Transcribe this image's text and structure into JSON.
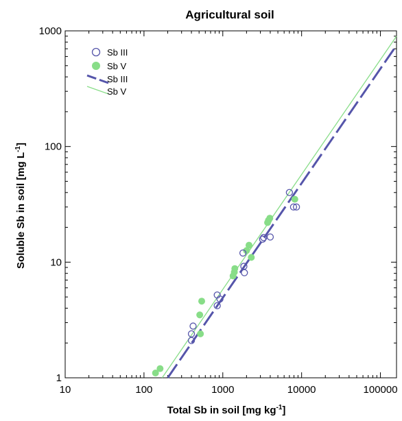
{
  "chart_data": {
    "type": "scatter",
    "title": "Agricultural soil",
    "xlabel": {
      "main": "Total Sb in soil [mg kg",
      "sup": "-1",
      "tail": "]"
    },
    "ylabel": {
      "main": "Soluble Sb in soil [mg L",
      "sup": "-1",
      "tail": "]"
    },
    "x_scale": "log",
    "y_scale": "log",
    "xlim": [
      10,
      160000
    ],
    "ylim": [
      1,
      1000
    ],
    "x_ticks": [
      10,
      100,
      1000,
      10000,
      100000
    ],
    "x_tick_labels": [
      "10",
      "100",
      "1000",
      "10000",
      "100000"
    ],
    "y_ticks": [
      1,
      10,
      100,
      1000
    ],
    "y_tick_labels": [
      "1",
      "10",
      "100",
      "1000"
    ],
    "grid": false,
    "legend_position": "top-left",
    "colors": {
      "sb3": "#5555aa",
      "sb5": "#88dd88"
    },
    "series": [
      {
        "name": "Sb III",
        "kind": "points",
        "marker": "open-circle",
        "color": "#5555aa",
        "points": [
          [
            400,
            2.1
          ],
          [
            400,
            2.4
          ],
          [
            420,
            2.8
          ],
          [
            850,
            4.2
          ],
          [
            850,
            5.2
          ],
          [
            920,
            4.8
          ],
          [
            1800,
            12
          ],
          [
            1850,
            9.2
          ],
          [
            1880,
            8.1
          ],
          [
            3200,
            15.8
          ],
          [
            3300,
            16.3
          ],
          [
            4000,
            16.5
          ],
          [
            7000,
            40
          ],
          [
            7900,
            30
          ],
          [
            8600,
            30
          ]
        ]
      },
      {
        "name": "Sb V",
        "kind": "points",
        "marker": "filled-circle",
        "color": "#88dd88",
        "points": [
          [
            140,
            1.1
          ],
          [
            160,
            1.2
          ],
          [
            520,
            2.4
          ],
          [
            510,
            3.5
          ],
          [
            540,
            4.6
          ],
          [
            1350,
            7.6
          ],
          [
            1400,
            8.2
          ],
          [
            1420,
            8.8
          ],
          [
            2000,
            12.6
          ],
          [
            2150,
            14
          ],
          [
            2300,
            11
          ],
          [
            3700,
            22
          ],
          [
            3800,
            23
          ],
          [
            3950,
            24
          ],
          [
            8200,
            35
          ]
        ]
      },
      {
        "name": "Sb III",
        "kind": "line",
        "style": "dashed",
        "color": "#5555aa",
        "line": [
          [
            200,
            1
          ],
          [
            160000,
            750
          ]
        ]
      },
      {
        "name": "Sb V",
        "kind": "line",
        "style": "solid",
        "color": "#88dd88",
        "line": [
          [
            170,
            1
          ],
          [
            160000,
            900
          ]
        ]
      }
    ]
  }
}
